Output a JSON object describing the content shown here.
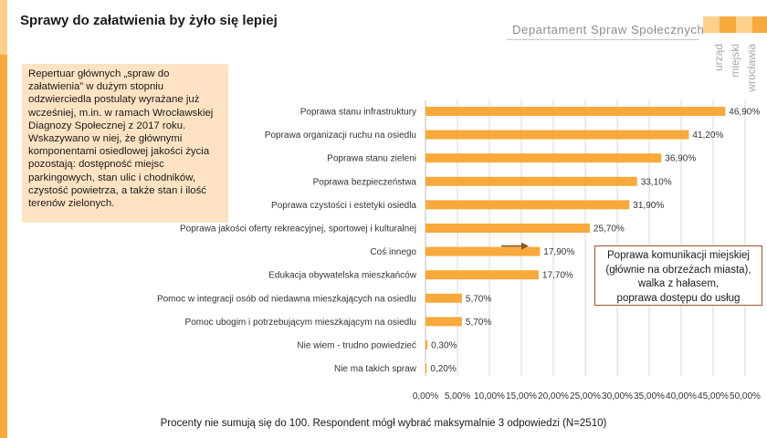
{
  "title": "Sprawy do załatwienia by żyło się lepiej",
  "header": {
    "department": "Departament Spraw Społecznych",
    "logo_lines": [
      "urząd",
      "miejski",
      "wrocławia"
    ]
  },
  "info_text": "Repertuar głównych „spraw do załatwienia” w dużym stopniu odzwierciedla postulaty wyrażane już wcześniej, m.in. w ramach Wrocławskiej Diagnozy Społecznej z 2017 roku. Wskazywano w niej, że głównymi komponentami osiedlowej jakości życia pozostają: dostępność miejsc parkingowych, stan ulic i chodników, czystość powietrza, a także stan i ilość terenów zielonych.",
  "callout": {
    "lines": [
      "Poprawa komunikacji miejskiej",
      "(głównie na obrzeżach miasta),",
      "walka z hałasem,",
      "poprawa dostępu do usług"
    ]
  },
  "footnote": "Procenty nie sumują się do 100. Respondent mógł wybrać maksymalnie 3 odpowiedzi (N=2510)",
  "colors": {
    "bar": "#f7a93c",
    "accent": "#f7a93c",
    "accent_light": "#fcd08a",
    "callout_border": "#a0522d",
    "arrow": "#8b5a1a",
    "info_bg": "#fde3c3",
    "grid": "#d9d9d9"
  },
  "chart_data": {
    "type": "bar",
    "orientation": "horizontal",
    "categories": [
      "Poprawa stanu infrastruktury",
      "Poprawa organizacji ruchu na osiedlu",
      "Poprawa stanu zieleni",
      "Poprawa bezpieczeństwa",
      "Poprawa czystości i estetyki osiedla",
      "Poprawa jakości oferty rekreacyjnej, sportowej i kulturalnej",
      "Coś innego",
      "Edukacja obywatelska mieszkańców",
      "Pomoc w integracji osób od niedawna mieszkających na osiedlu",
      "Pomoc ubogim i potrzebującym mieszkającym na osiedlu",
      "Nie wiem - trudno powiedzieć",
      "Nie ma takich spraw"
    ],
    "values": [
      46.9,
      41.2,
      36.9,
      33.1,
      31.9,
      25.7,
      17.9,
      17.7,
      5.7,
      5.7,
      0.3,
      0.2
    ],
    "value_labels": [
      "46,90%",
      "41,20%",
      "36,90%",
      "33,10%",
      "31,90%",
      "25,70%",
      "17,90%",
      "17,70%",
      "5,70%",
      "5,70%",
      "0,30%",
      "0,20%"
    ],
    "xlim": [
      0,
      50
    ],
    "xticks": [
      "0,00%",
      "5,00%",
      "10,00%",
      "15,00%",
      "20,00%",
      "25,00%",
      "30,00%",
      "35,00%",
      "40,00%",
      "45,00%",
      "50,00%"
    ],
    "grid": true,
    "title": "",
    "xlabel": "",
    "ylabel": ""
  }
}
